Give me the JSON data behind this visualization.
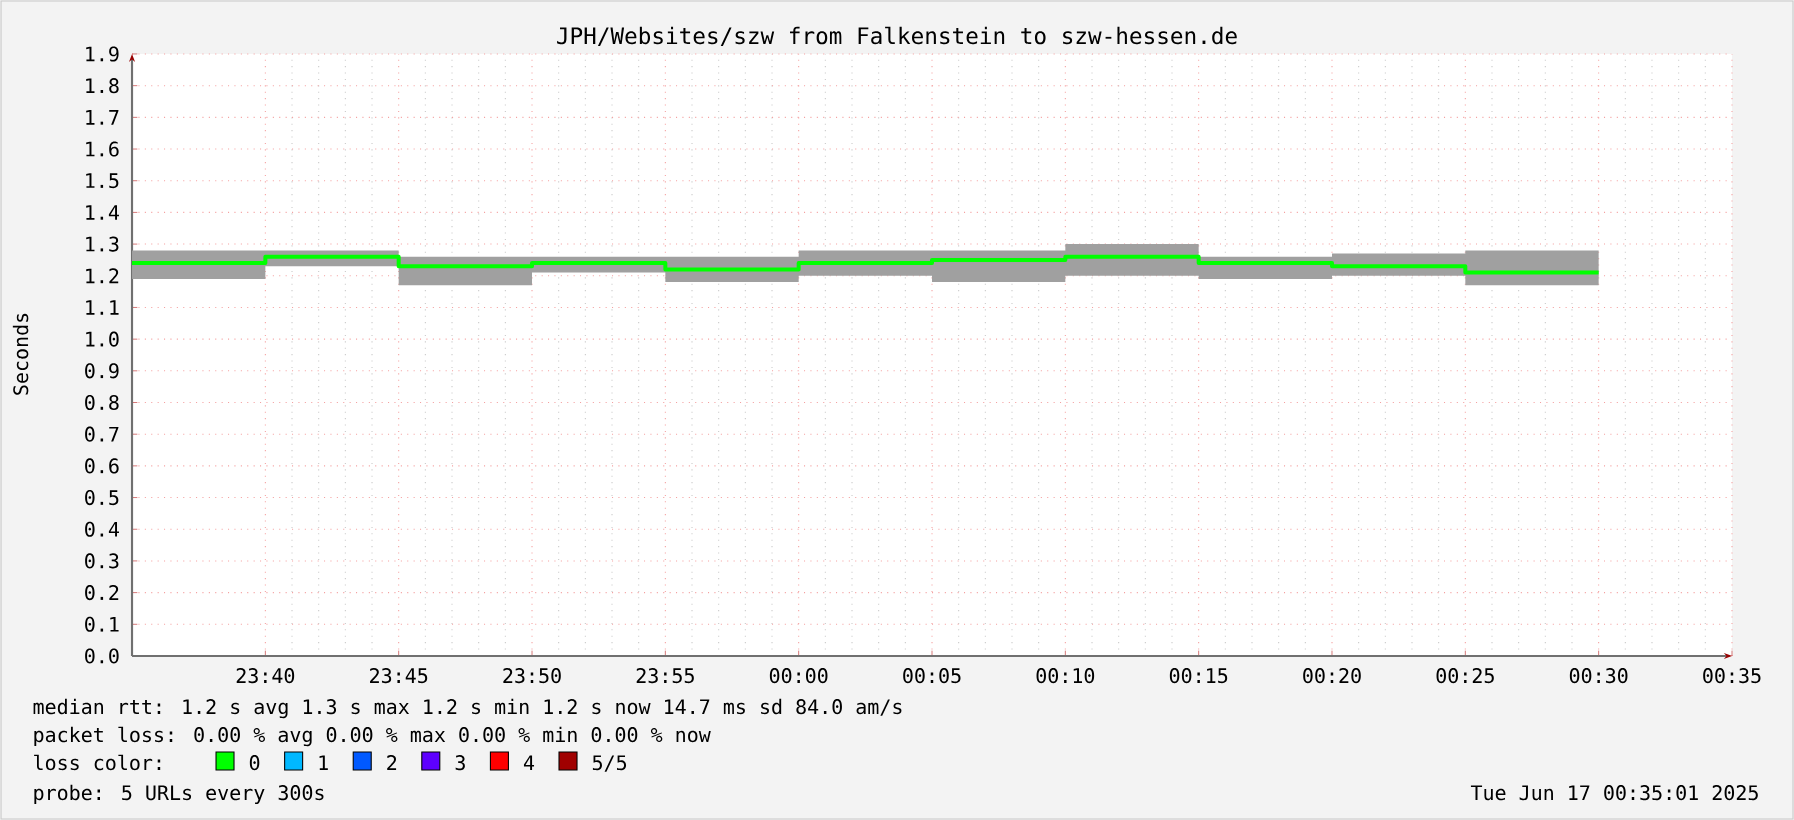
{
  "chart_data": {
    "type": "step",
    "title": "JPH/Websites/szw from Falkenstein to szw-hessen.de",
    "ylabel": "Seconds",
    "x": [
      "2025-06-16T23:35",
      "2025-06-16T23:40",
      "2025-06-16T23:45",
      "2025-06-16T23:50",
      "2025-06-16T23:55",
      "2025-06-17T00:00",
      "2025-06-17T00:05",
      "2025-06-17T00:10",
      "2025-06-17T00:15",
      "2025-06-17T00:20",
      "2025-06-17T00:25",
      "2025-06-17T00:30"
    ],
    "series": [
      {
        "color": "#00ff00",
        "values": [
          1.24,
          1.26,
          1.23,
          1.24,
          1.22,
          1.24,
          1.25,
          1.26,
          1.24,
          1.23,
          1.21,
          1.21
        ],
        "lower": [
          1.19,
          1.23,
          1.17,
          1.21,
          1.18,
          1.2,
          1.18,
          1.2,
          1.19,
          1.2,
          1.17,
          1.17
        ],
        "upper": [
          1.28,
          1.28,
          1.26,
          1.26,
          1.26,
          1.28,
          1.28,
          1.3,
          1.26,
          1.27,
          1.28,
          1.28
        ]
      }
    ],
    "xlim": [
      "2025-06-16T23:35",
      "2025-06-17T00:35"
    ],
    "xticks": [
      {
        "value": "2025-06-16T23:40",
        "label": "23:40"
      },
      {
        "value": "2025-06-16T23:45",
        "label": "23:45"
      },
      {
        "value": "2025-06-16T23:50",
        "label": "23:50"
      },
      {
        "value": "2025-06-16T23:55",
        "label": "23:55"
      },
      {
        "value": "2025-06-17T00:00",
        "label": "00:00"
      },
      {
        "value": "2025-06-17T00:05",
        "label": "00:05"
      },
      {
        "value": "2025-06-17T00:10",
        "label": "00:10"
      },
      {
        "value": "2025-06-17T00:15",
        "label": "00:15"
      },
      {
        "value": "2025-06-17T00:20",
        "label": "00:20"
      },
      {
        "value": "2025-06-17T00:25",
        "label": "00:25"
      },
      {
        "value": "2025-06-17T00:30",
        "label": "00:30"
      },
      {
        "value": "2025-06-17T00:35",
        "label": "00:35"
      }
    ],
    "ylim": [
      0,
      1.9
    ],
    "yticks": [
      {
        "value": 0,
        "label": "0.0"
      },
      0.1,
      0.2,
      0.3,
      0.4,
      0.5,
      0.6,
      0.7,
      0.8,
      0.9,
      {
        "value": 1,
        "label": "1.0"
      },
      1.1,
      1.2,
      1.3,
      1.4,
      1.5,
      1.6,
      1.7,
      1.8,
      1.9
    ],
    "grid": true,
    "annotations": [
      "median rtt: 1.2 s avg 1.3 s max 1.2 s min 1.2 s now 14.7 ms sd 84.0 am/s",
      "packet loss: 0.00 % avg 0.00 % max 0.00 % min 0.00 % now",
      "loss color:",
      "0",
      "1",
      "2",
      "3",
      "4",
      "5/5",
      "probe: 5 URLs every 300s",
      "Tue Jun 17 00:35:01 2025"
    ]
  }
}
